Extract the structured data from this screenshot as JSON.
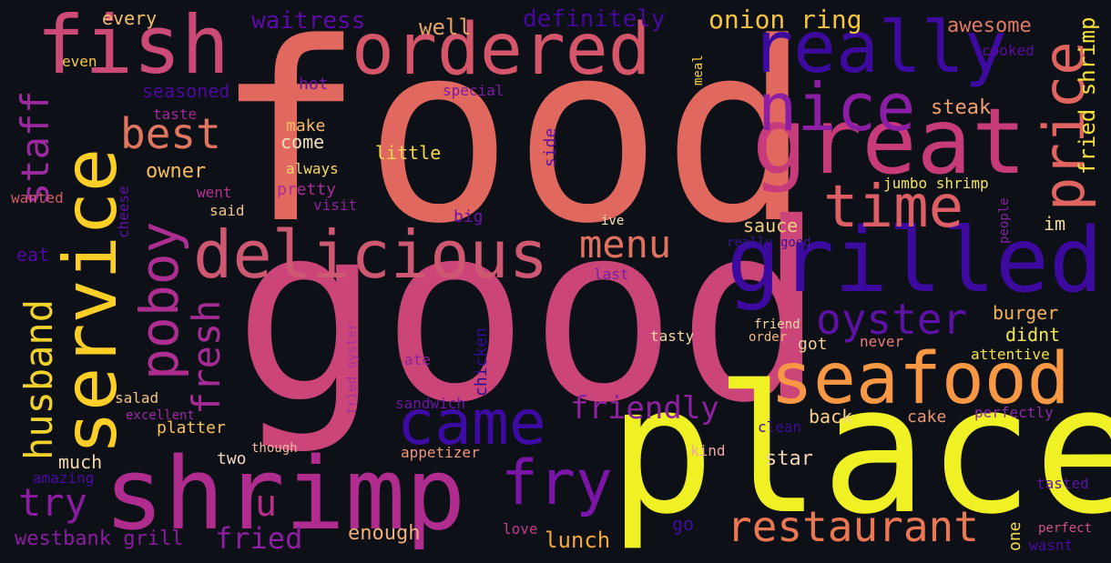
{
  "words": [
    {
      "text": "food",
      "color": "#e0685f"
    },
    {
      "text": "good",
      "color": "#cb4579"
    },
    {
      "text": "place",
      "color": "#f0f124"
    },
    {
      "text": "service",
      "color": "#fcce26"
    },
    {
      "text": "shrimp",
      "color": "#b02c8f"
    },
    {
      "text": "great",
      "color": "#c83b7b"
    },
    {
      "text": "ordered",
      "color": "#d5566a"
    },
    {
      "text": "grilled",
      "color": "#3d0aa0"
    },
    {
      "text": "fish",
      "color": "#cb4a77"
    },
    {
      "text": "really",
      "color": "#3d0aa0"
    },
    {
      "text": "delicious",
      "color": "#ce5872"
    },
    {
      "text": "seafood",
      "color": "#f89845"
    },
    {
      "text": "nice",
      "color": "#8c1ea6"
    },
    {
      "text": "price",
      "color": "#e0645f"
    },
    {
      "text": "came",
      "color": "#3e0aa4"
    },
    {
      "text": "time",
      "color": "#de5e66"
    },
    {
      "text": "fry",
      "color": "#7a15a8"
    },
    {
      "text": "poboy",
      "color": "#ad2d91"
    },
    {
      "text": "restaurant",
      "color": "#ec7853"
    },
    {
      "text": "oyster",
      "color": "#5d11a6"
    },
    {
      "text": "best",
      "color": "#e07660"
    },
    {
      "text": "menu",
      "color": "#e07260"
    },
    {
      "text": "husband",
      "color": "#f1d12c"
    },
    {
      "text": "staff",
      "color": "#9c2a9e"
    },
    {
      "text": "fresh",
      "color": "#a62b95"
    },
    {
      "text": "try",
      "color": "#891ca0"
    },
    {
      "text": "friendly",
      "color": "#8e21a0"
    },
    {
      "text": "onion ring",
      "color": "#f6c43c"
    },
    {
      "text": "u",
      "color": "#b72f8a"
    },
    {
      "text": "fried",
      "color": "#8e1fa2"
    },
    {
      "text": "westbank grill",
      "color": "#891ca0"
    },
    {
      "text": "lunch",
      "color": "#f2a93b"
    },
    {
      "text": "waitress",
      "color": "#5e0aa7"
    },
    {
      "text": "definitely",
      "color": "#46089e"
    },
    {
      "text": "well",
      "color": "#e2a367"
    },
    {
      "text": "awesome",
      "color": "#e07a63"
    },
    {
      "text": "fried shrimp",
      "color": "#f7e03a"
    },
    {
      "text": "cooked",
      "color": "#5d0ca2"
    },
    {
      "text": "every",
      "color": "#f5c06b"
    },
    {
      "text": "even",
      "color": "#f5c847"
    },
    {
      "text": "meal",
      "color": "#f6d13a"
    },
    {
      "text": "seasoned",
      "color": "#4c0aa0"
    },
    {
      "text": "hot",
      "color": "#6d13a4"
    },
    {
      "text": "special",
      "color": "#7d1aa1"
    },
    {
      "text": "taste",
      "color": "#a02b9c"
    },
    {
      "text": "make",
      "color": "#f6bb6a"
    },
    {
      "text": "come",
      "color": "#f1e0bd"
    },
    {
      "text": "steak",
      "color": "#f0a06f"
    },
    {
      "text": "little",
      "color": "#f6d74f"
    },
    {
      "text": "side",
      "color": "#5a10a2"
    },
    {
      "text": "owner",
      "color": "#f6bd5e"
    },
    {
      "text": "always",
      "color": "#f6d56e"
    },
    {
      "text": "jumbo shrimp",
      "color": "#f4e26a"
    },
    {
      "text": "wanted",
      "color": "#d45b67"
    },
    {
      "text": "went",
      "color": "#b33191"
    },
    {
      "text": "pretty",
      "color": "#a72d95"
    },
    {
      "text": "cheese",
      "color": "#5f11a5"
    },
    {
      "text": "said",
      "color": "#f1c390"
    },
    {
      "text": "visit",
      "color": "#8f24a0"
    },
    {
      "text": "big",
      "color": "#6c11a6"
    },
    {
      "text": "ive",
      "color": "#f4e9b8"
    },
    {
      "text": "sauce",
      "color": "#f2cd7d"
    },
    {
      "text": "im",
      "color": "#f3dba4"
    },
    {
      "text": "people",
      "color": "#8224a4"
    },
    {
      "text": "eat",
      "color": "#4e0aa0"
    },
    {
      "text": "really good",
      "color": "#3b1593"
    },
    {
      "text": "last",
      "color": "#7220a4"
    },
    {
      "text": "burger",
      "color": "#f2b25c"
    },
    {
      "text": "didnt",
      "color": "#f3e55d"
    },
    {
      "text": "fried oyster",
      "color": "#a4309a"
    },
    {
      "text": "friend",
      "color": "#f5d7a5"
    },
    {
      "text": "tasty",
      "color": "#f4d7a0"
    },
    {
      "text": "order",
      "color": "#f2b680"
    },
    {
      "text": "got",
      "color": "#f4cf9a"
    },
    {
      "text": "never",
      "color": "#e57d7a"
    },
    {
      "text": "attentive",
      "color": "#f5e24a"
    },
    {
      "text": "ate",
      "color": "#8e25a0"
    },
    {
      "text": "chicken",
      "color": "#2f0d91"
    },
    {
      "text": "salad",
      "color": "#f4c384"
    },
    {
      "text": "sandwich",
      "color": "#6a15a4"
    },
    {
      "text": "excellent",
      "color": "#9b2ca0"
    },
    {
      "text": "clean",
      "color": "#3c0d9a"
    },
    {
      "text": "back",
      "color": "#f7cf8f"
    },
    {
      "text": "cake",
      "color": "#e79976"
    },
    {
      "text": "perfectly",
      "color": "#8d2ba4"
    },
    {
      "text": "platter",
      "color": "#f7c35b"
    },
    {
      "text": "though",
      "color": "#f5b9a2"
    },
    {
      "text": "appetizer",
      "color": "#ef977a"
    },
    {
      "text": "two",
      "color": "#f1d6c2"
    },
    {
      "text": "much",
      "color": "#f6d6ac"
    },
    {
      "text": "amazing",
      "color": "#4a0ba0"
    },
    {
      "text": "kind",
      "color": "#f1a4a4"
    },
    {
      "text": "star",
      "color": "#f1d1b6"
    },
    {
      "text": "tasted",
      "color": "#5a16a4"
    },
    {
      "text": "enough",
      "color": "#f1b07c"
    },
    {
      "text": "love",
      "color": "#bc3d8c"
    },
    {
      "text": "go",
      "color": "#3e0d9c"
    },
    {
      "text": "one",
      "color": "#f5dc53"
    },
    {
      "text": "perfect",
      "color": "#d1508a"
    },
    {
      "text": "wasnt",
      "color": "#4c0ba2"
    }
  ]
}
